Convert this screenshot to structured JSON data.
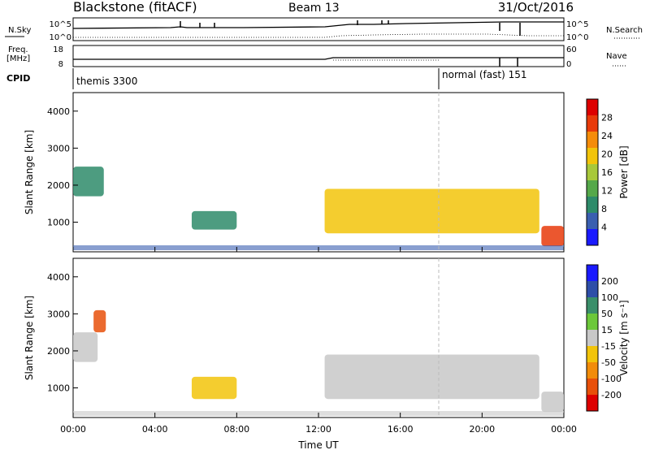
{
  "header": {
    "site": "Blackstone (fitACF)",
    "beam": "Beam 13",
    "date": "31/Oct/2016"
  },
  "top_panels": {
    "nsky_label": "N.Sky",
    "nsky_ticks": [
      "10^5",
      "10^0"
    ],
    "nsearch_label": "N.Search",
    "nsearch_ticks": [
      "10^5",
      "10^0"
    ],
    "freq_label_1": "Freq.",
    "freq_label_2": "[MHz]",
    "freq_ticks": [
      "18",
      "8"
    ],
    "nave_label": "Nave",
    "nave_ticks": [
      "60",
      "0"
    ],
    "cpid_label": "CPID",
    "cpid_modes": [
      "themis 3300",
      "normal (fast) 151"
    ]
  },
  "chart_data": [
    {
      "type": "heatmap",
      "name": "power",
      "ylabel": "Slant Range [km]",
      "y_ticks": [
        "1000",
        "2000",
        "3000",
        "4000"
      ],
      "ylim": [
        200,
        4500
      ],
      "xlim": [
        0,
        24
      ],
      "x_ticks": [
        0,
        4,
        8,
        12,
        16,
        20,
        24
      ],
      "colorbar_label": "Power [dB]",
      "colorbar_ticks": [
        "4",
        "8",
        "12",
        "16",
        "20",
        "24",
        "28"
      ],
      "colorbar_range": [
        0,
        32
      ],
      "regions": [
        {
          "x0": 0.0,
          "x1": 1.5,
          "ylo": 1700,
          "yhi": 2500,
          "level": 10
        },
        {
          "x0": 5.8,
          "x1": 8.0,
          "ylo": 800,
          "yhi": 1300,
          "level": 10
        },
        {
          "x0": 12.3,
          "x1": 22.8,
          "ylo": 700,
          "yhi": 1900,
          "level": 18
        },
        {
          "x0": 22.9,
          "x1": 24.0,
          "ylo": 350,
          "yhi": 900,
          "level": 26
        }
      ]
    },
    {
      "type": "heatmap",
      "name": "velocity",
      "ylabel": "Slant Range [km]",
      "y_ticks": [
        "1000",
        "2000",
        "3000",
        "4000"
      ],
      "ylim": [
        200,
        4500
      ],
      "xlim": [
        0,
        24
      ],
      "x_ticks": [
        0,
        4,
        8,
        12,
        16,
        20,
        24
      ],
      "x_tick_labels": [
        "00:00",
        "04:00",
        "08:00",
        "12:00",
        "16:00",
        "20:00",
        "00:00"
      ],
      "xlabel": "Time UT",
      "colorbar_label": "Velocity [m s⁻¹]",
      "colorbar_ticks": [
        "200",
        "100",
        "50",
        "15",
        "-15",
        "-50",
        "-100",
        "-200"
      ],
      "regions": [
        {
          "x0": 0.0,
          "x1": 1.2,
          "ylo": 1700,
          "yhi": 2500,
          "velocity": 0
        },
        {
          "x0": 1.0,
          "x1": 1.6,
          "ylo": 2500,
          "yhi": 3100,
          "velocity": -200
        },
        {
          "x0": 5.8,
          "x1": 8.0,
          "ylo": 700,
          "yhi": 1300,
          "velocity": -50
        },
        {
          "x0": 12.3,
          "x1": 22.8,
          "ylo": 700,
          "yhi": 1900,
          "velocity": 0
        },
        {
          "x0": 22.9,
          "x1": 24.0,
          "ylo": 350,
          "yhi": 900,
          "velocity": 0
        }
      ]
    }
  ],
  "colors": {
    "power_scale": [
      "#1a1aff",
      "#3a5fb0",
      "#2e8b6a",
      "#55a84a",
      "#a8c83a",
      "#f2c40a",
      "#f58c0a",
      "#e83a0a",
      "#dd0000"
    ],
    "velocity_scale": [
      "#1a1aff",
      "#2e4ea8",
      "#3a8f6a",
      "#6cc83a",
      "#c8c8c8",
      "#f2c40a",
      "#f28c0a",
      "#e8500a",
      "#dd0000"
    ]
  }
}
